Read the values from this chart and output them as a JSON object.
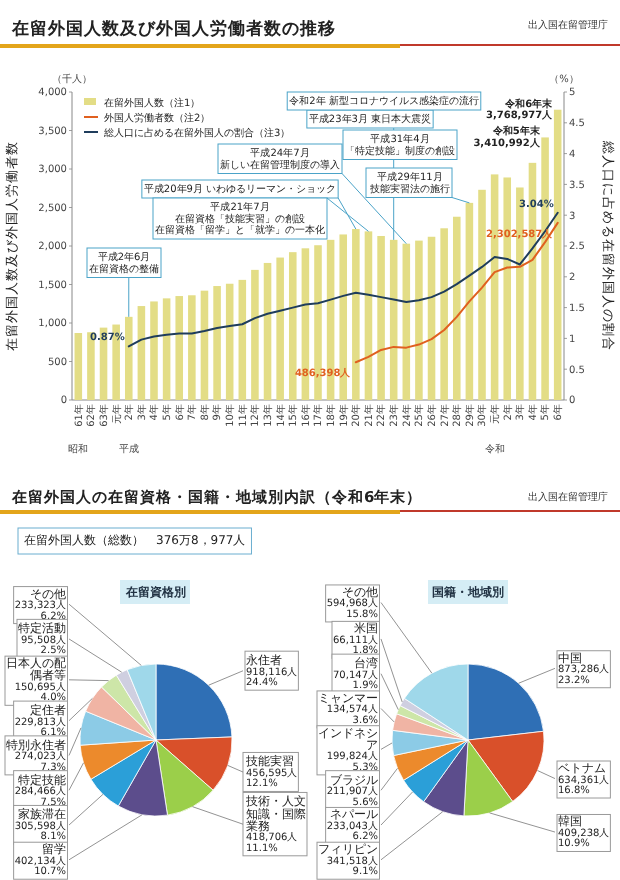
{
  "chart_data": [
    {
      "type": "bar",
      "title": "在留外国人数及び外国人労働者数の推移",
      "ylabel": "在留外国人数及び外国人労働者数",
      "y2label": "総人口に占める在留外国人の割合",
      "categories": [
        "61年",
        "62年",
        "63年",
        "元年",
        "2年",
        "3年",
        "4年",
        "5年",
        "6年",
        "7年",
        "8年",
        "9年",
        "10年",
        "11年",
        "12年",
        "13年",
        "14年",
        "15年",
        "16年",
        "17年",
        "18年",
        "19年",
        "20年",
        "21年",
        "22年",
        "23年",
        "24年",
        "25年",
        "26年",
        "27年",
        "28年",
        "29年",
        "30年",
        "元年",
        "2年",
        "3年",
        "4年",
        "5年",
        "6年"
      ],
      "series": [
        {
          "name": "在留外国人数（注1）",
          "type": "bar",
          "color": "#e3dd86",
          "values": [
            870,
            880,
            940,
            980,
            1080,
            1220,
            1280,
            1320,
            1350,
            1360,
            1420,
            1480,
            1510,
            1560,
            1690,
            1780,
            1850,
            1920,
            1970,
            2010,
            2080,
            2150,
            2220,
            2190,
            2130,
            2080,
            2030,
            2070,
            2120,
            2230,
            2380,
            2560,
            2730,
            2930,
            2890,
            2760,
            3080,
            3410,
            3770
          ]
        },
        {
          "name": "外国人労働者数（注2）",
          "type": "line",
          "color": "#e0601f",
          "values": [
            null,
            null,
            null,
            null,
            null,
            null,
            null,
            null,
            null,
            null,
            null,
            null,
            null,
            null,
            null,
            null,
            null,
            null,
            null,
            null,
            null,
            null,
            490,
            560,
            650,
            690,
            680,
            720,
            790,
            910,
            1080,
            1280,
            1460,
            1660,
            1720,
            1730,
            1820,
            2050,
            2300
          ]
        },
        {
          "name": "総人口に占める在留外国人の割合（注3）",
          "type": "line",
          "axis": "y2",
          "color": "#1f3d5c",
          "values": [
            null,
            null,
            null,
            null,
            0.87,
            0.98,
            1.03,
            1.06,
            1.08,
            1.08,
            1.12,
            1.17,
            1.2,
            1.23,
            1.33,
            1.4,
            1.45,
            1.5,
            1.55,
            1.57,
            1.63,
            1.69,
            1.74,
            1.71,
            1.67,
            1.63,
            1.59,
            1.62,
            1.67,
            1.76,
            1.88,
            2.02,
            2.16,
            2.32,
            2.29,
            2.2,
            2.46,
            2.74,
            3.04
          ],
          "value_labels": [
            null,
            null,
            null,
            null,
            "0.87%",
            null,
            null,
            null,
            null,
            null,
            null,
            null,
            null,
            null,
            null,
            null,
            null,
            null,
            null,
            null,
            null,
            null,
            null,
            null,
            null,
            null,
            null,
            null,
            null,
            null,
            null,
            null,
            null,
            null,
            null,
            null,
            null,
            null,
            "3.04%"
          ]
        }
      ],
      "ylim": [
        0,
        4000
      ],
      "yticks": [
        0,
        500,
        {
          "value": 1000,
          "label": "1,000"
        },
        {
          "value": 1500,
          "label": "1,500"
        },
        {
          "value": 2000,
          "label": "2,000"
        },
        {
          "value": 2500,
          "label": "2,500"
        },
        {
          "value": 3000,
          "label": "3,000"
        },
        {
          "value": 3500,
          "label": "3,500"
        },
        {
          "value": 4000,
          "label": "4,000"
        }
      ],
      "y2lim": [
        0,
        5
      ],
      "y2ticks": [
        0,
        0.5,
        1,
        1.5,
        2,
        2.5,
        3,
        3.5,
        4,
        4.5,
        5
      ],
      "legend": "top left",
      "annotations": [
        "（千人）",
        "（%）",
        "昭和",
        "平成",
        "令和",
        {
          "text": "平成2年6月在留資格の整備",
          "x": "2年",
          "y": 1080
        },
        {
          "text": "平成20年9月 いわゆるリーマン・ショック",
          "x": "20年",
          "y": 2220
        },
        {
          "text": "平成21年7月在留資格「技能実習」の創設在留資格「留学」と「就学」の一本化",
          "x": "21年",
          "y": 2190
        },
        {
          "text": "平成23年3月 東日本大震災",
          "x": "23年",
          "y": 2080
        },
        {
          "text": "平成24年7月新しい在留管理制度の導入",
          "x": "24年",
          "y": 2030
        },
        {
          "text": "平成29年11月技能実習法の施行",
          "x": "29年",
          "y": 2560
        },
        "平成31年4月「特定技能」制度の創設",
        "令和2年 新型コロナウイルス感染症の流行",
        "出入国在留管理庁",
        "令和5年末3,410,992人",
        "令和6年末3,768,977人",
        {
          "text": "486,398人",
          "x": "20年",
          "y": 490
        },
        "2,302,587人"
      ]
    },
    {
      "type": "pie",
      "title": "在留資格別",
      "categories": [
        "永住者",
        "技能実習",
        "技術・人文知識・国際業務",
        "留学",
        "家族滞在",
        "特定技能",
        "特別永住者",
        "定住者",
        "日本人の配偶者等",
        "特定活動",
        "その他"
      ],
      "values": [
        918116,
        456595,
        418706,
        402134,
        305598,
        284466,
        274023,
        229813,
        150695,
        95508,
        233323
      ],
      "value_labels": [
        "918,116人\n24.4%",
        "456,595人\n12.1%",
        "418,706人\n11.1%",
        "402,134人\n10.7%",
        "305,598人\n8.1%",
        "284,466人\n7.5%",
        "274,023人\n7.3%",
        "229,813人\n6.1%",
        "150,695人\n4.0%",
        "95,508人\n2.5%",
        "233,323人\n6.2%"
      ],
      "colors": [
        "#2f6fb5",
        "#d9502a",
        "#9bcf4a",
        "#5c4d8c",
        "#2b9fd8",
        "#ec8a2c",
        "#8ccbe6",
        "#f0b4a4",
        "#cde6a8",
        "#cfcfe0",
        "#9fd8ea"
      ],
      "annotations": [
        "在留外国人の在留資格・国籍・地域別内訳（令和6年末）",
        "出入国在留管理庁",
        "在留外国人数（総数）　376万8，977人"
      ]
    },
    {
      "type": "pie",
      "title": "国籍・地域別",
      "categories": [
        "中国",
        "ベトナム",
        "韓国",
        "フィリピン",
        "ネパール",
        "ブラジル",
        "インドネシア",
        "ミャンマー",
        "台湾",
        "米国",
        "その他"
      ],
      "values": [
        873286,
        634361,
        409238,
        341518,
        233043,
        211907,
        199824,
        134574,
        70147,
        66111,
        594968
      ],
      "value_labels": [
        "873,286人\n23.2%",
        "634,361人\n16.8%",
        "409,238人\n10.9%",
        "341,518人\n9.1%",
        "233,043人\n6.2%",
        "211,907人\n5.6%",
        "199,824人\n5.3%",
        "134,574人\n3.6%",
        "70,147人\n1.9%",
        "66,111人\n1.8%",
        "594,968人\n15.8%"
      ],
      "colors": [
        "#2f6fb5",
        "#d9502a",
        "#9bcf4a",
        "#5c4d8c",
        "#2b9fd8",
        "#ec8a2c",
        "#8ccbe6",
        "#f0b4a4",
        "#cde6a8",
        "#cfcfe0",
        "#9fd8ea"
      ]
    }
  ]
}
